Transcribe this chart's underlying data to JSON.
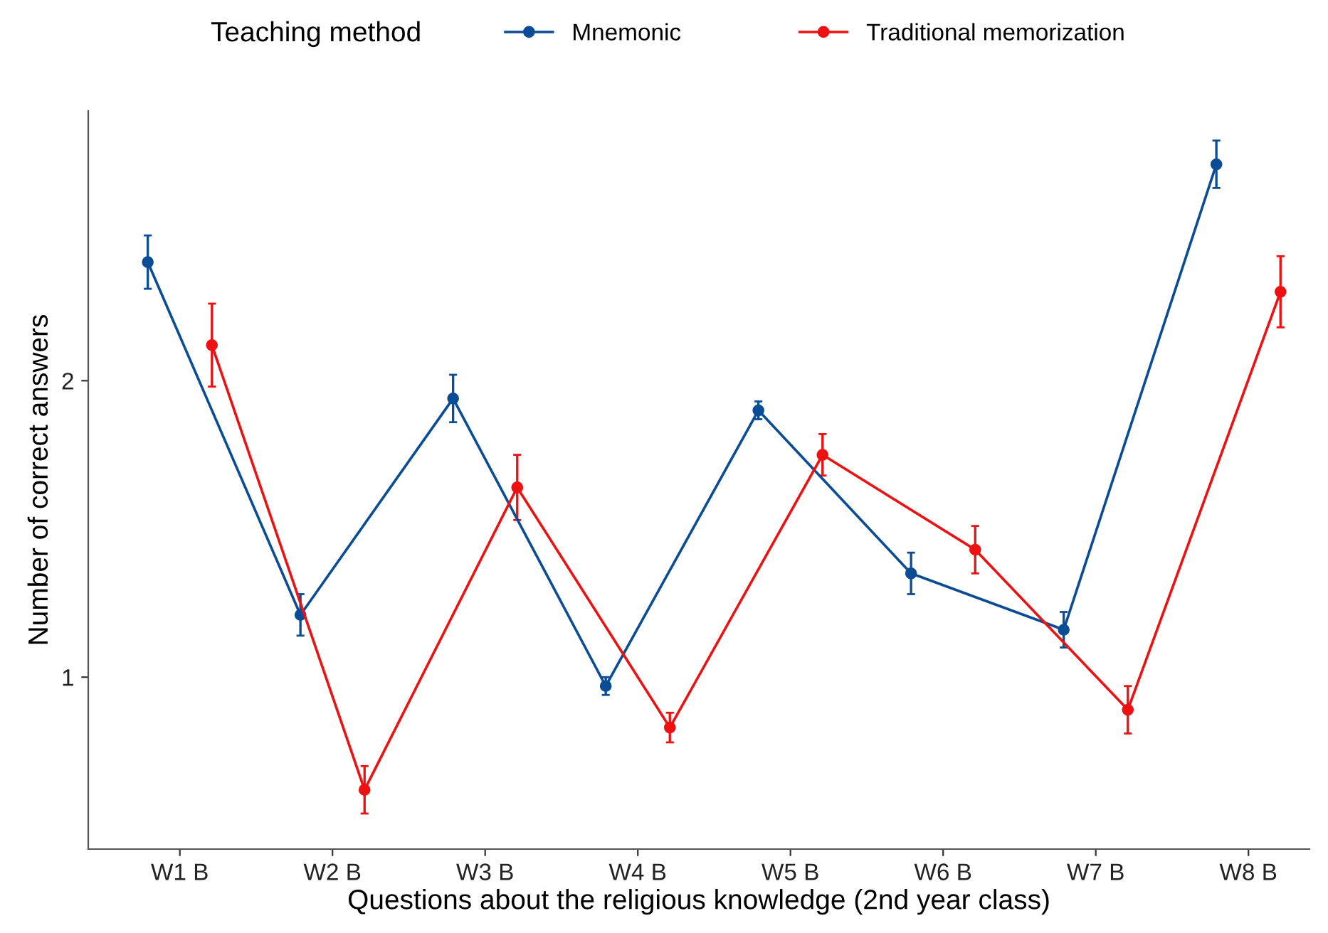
{
  "chart_data": {
    "type": "line",
    "xlabel": "Questions about the religious knowledge (2nd year class)",
    "ylabel": "Number of correct answers",
    "legend_title": "Teaching method",
    "categories": [
      "W1 B",
      "W2 B",
      "W3 B",
      "W4 B",
      "W5 B",
      "W6 B",
      "W7 B",
      "W8 B"
    ],
    "series": [
      {
        "name": "Mnemonic",
        "color": "#0b4c96",
        "values": [
          2.4,
          1.21,
          1.94,
          0.97,
          1.9,
          1.35,
          1.16,
          2.73
        ],
        "errors": [
          0.09,
          0.07,
          0.08,
          0.03,
          0.03,
          0.07,
          0.06,
          0.08
        ]
      },
      {
        "name": "Traditional memorization",
        "color": "#ee1111",
        "values": [
          2.12,
          0.62,
          1.64,
          0.83,
          1.75,
          1.43,
          0.89,
          2.3
        ],
        "errors": [
          0.14,
          0.08,
          0.11,
          0.05,
          0.07,
          0.08,
          0.08,
          0.12
        ]
      }
    ],
    "ylim": [
      0.42,
      2.91
    ],
    "yticks": [
      1,
      2
    ],
    "grid": false,
    "legend": "top",
    "marker": "circle",
    "line_style": "solid"
  }
}
